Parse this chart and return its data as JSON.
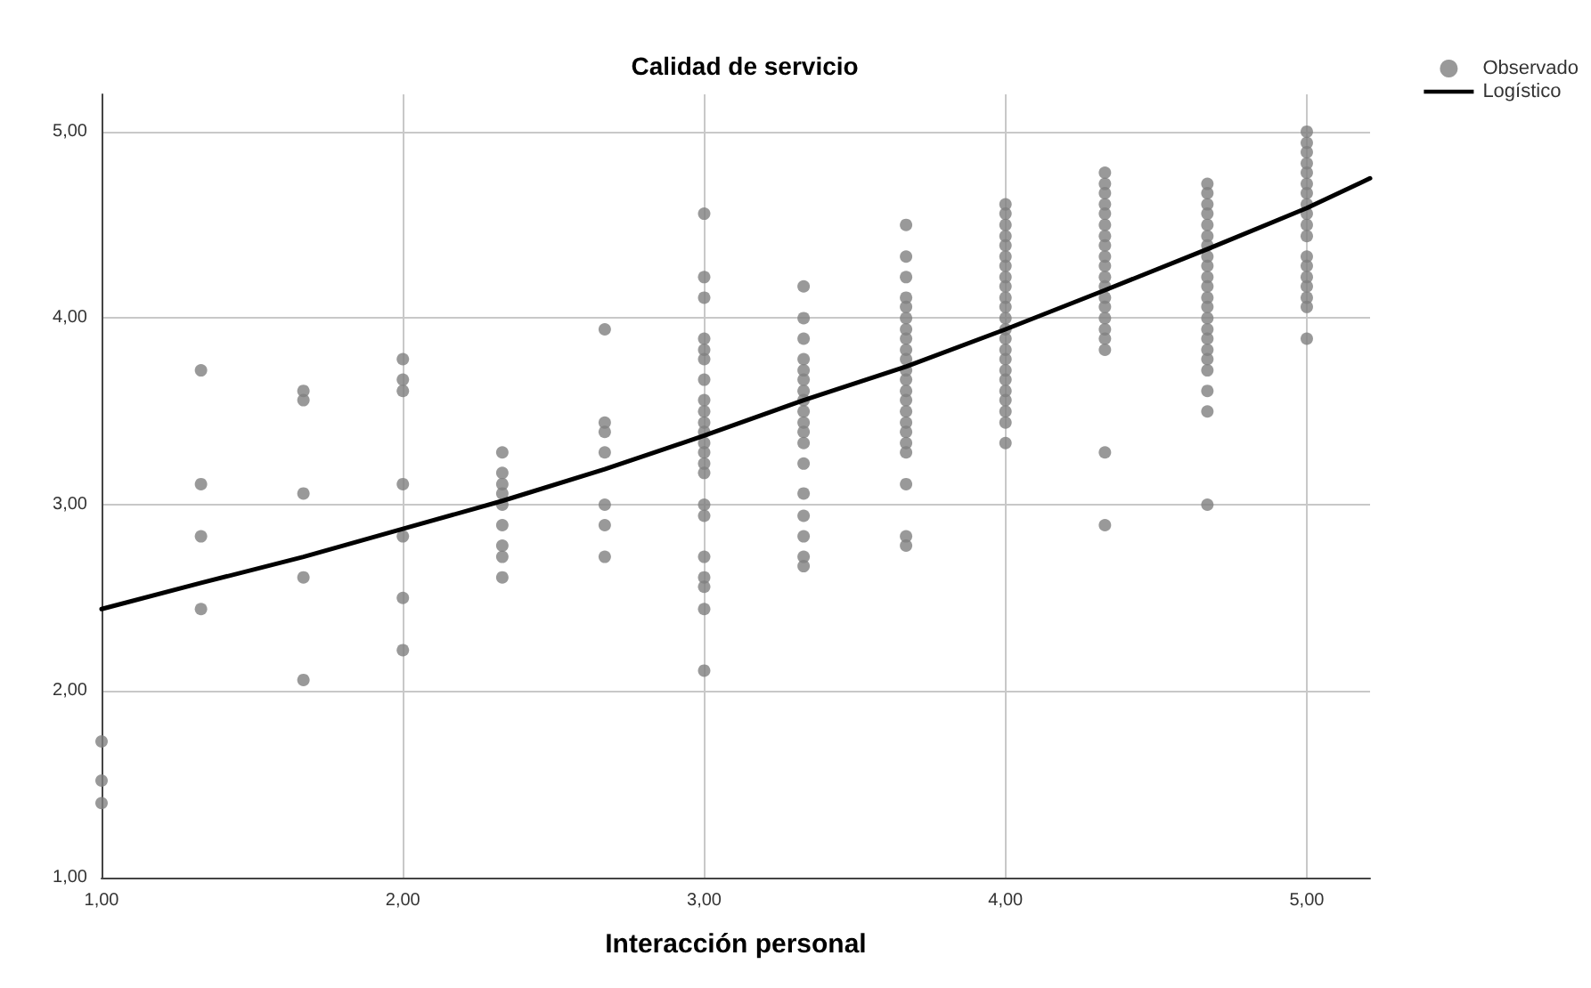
{
  "chart_data": {
    "type": "scatter",
    "title": "Calidad de servicio",
    "xlabel": "Interacción personal",
    "xlim": [
      1,
      5.21
    ],
    "ylim": [
      1,
      5.2
    ],
    "xticks": [
      {
        "value": 1,
        "label": "1,00"
      },
      {
        "value": 2,
        "label": "2,00"
      },
      {
        "value": 3,
        "label": "3,00"
      },
      {
        "value": 4,
        "label": "4,00"
      },
      {
        "value": 5,
        "label": "5,00"
      }
    ],
    "yticks": [
      {
        "value": 1,
        "label": "1,00"
      },
      {
        "value": 2,
        "label": "2,00"
      },
      {
        "value": 3,
        "label": "3,00"
      },
      {
        "value": 4,
        "label": "4,00"
      },
      {
        "value": 5,
        "label": "5,00"
      }
    ],
    "grid": true,
    "legend": "top right",
    "marker": "circle",
    "series": [
      {
        "name": "Observado",
        "color": "#808080",
        "x": [
          1,
          1,
          1,
          1.33,
          1.33,
          1.33,
          1.33,
          1.67,
          1.67,
          1.67,
          1.67,
          1.67,
          2,
          2,
          2,
          2,
          2,
          2,
          2,
          2.33,
          2.33,
          2.33,
          2.33,
          2.33,
          2.33,
          2.33,
          2.33,
          2.33,
          2.67,
          2.67,
          2.67,
          2.67,
          2.67,
          2.67,
          2.67,
          3,
          3,
          3,
          3,
          3,
          3,
          3,
          3,
          3,
          3,
          3,
          3,
          3,
          3,
          3,
          3,
          3,
          3,
          3,
          3,
          3,
          3,
          3.33,
          3.33,
          3.33,
          3.33,
          3.33,
          3.33,
          3.33,
          3.33,
          3.33,
          3.33,
          3.33,
          3.33,
          3.33,
          3.33,
          3.33,
          3.33,
          3.33,
          3.33,
          3.67,
          3.67,
          3.67,
          3.67,
          3.67,
          3.67,
          3.67,
          3.67,
          3.67,
          3.67,
          3.67,
          3.67,
          3.67,
          3.67,
          3.67,
          3.67,
          3.67,
          3.67,
          3.67,
          3.67,
          3.67,
          3.67,
          4,
          4,
          4,
          4,
          4,
          4,
          4,
          4,
          4,
          4,
          4,
          4,
          4,
          4,
          4,
          4,
          4,
          4,
          4,
          4,
          4,
          4,
          4,
          4.33,
          4.33,
          4.33,
          4.33,
          4.33,
          4.33,
          4.33,
          4.33,
          4.33,
          4.33,
          4.33,
          4.33,
          4.33,
          4.33,
          4.33,
          4.33,
          4.33,
          4.33,
          4.33,
          4.33,
          4.67,
          4.67,
          4.67,
          4.67,
          4.67,
          4.67,
          4.67,
          4.67,
          4.67,
          4.67,
          4.67,
          4.67,
          4.67,
          4.67,
          4.67,
          4.67,
          4.67,
          4.67,
          4.67,
          4.67,
          4.67,
          4.67,
          5,
          5,
          5,
          5,
          5,
          5,
          5,
          5,
          5,
          5,
          5,
          5,
          5,
          5,
          5,
          5,
          5,
          5
        ],
        "values": [
          1.73,
          1.52,
          1.4,
          3.72,
          3.11,
          2.83,
          2.44,
          3.61,
          3.56,
          3.06,
          2.61,
          2.06,
          3.78,
          3.67,
          3.61,
          3.11,
          2.83,
          2.5,
          2.22,
          3.28,
          3.17,
          3.11,
          3.06,
          3.0,
          2.89,
          2.78,
          2.72,
          2.61,
          3.94,
          3.44,
          3.39,
          3.28,
          3.0,
          2.89,
          2.72,
          4.56,
          4.22,
          4.11,
          3.89,
          3.83,
          3.78,
          3.67,
          3.56,
          3.5,
          3.44,
          3.39,
          3.33,
          3.28,
          3.22,
          3.17,
          3.0,
          2.94,
          2.72,
          2.61,
          2.56,
          2.44,
          2.11,
          4.17,
          4.0,
          3.89,
          3.78,
          3.72,
          3.67,
          3.61,
          3.56,
          3.5,
          3.44,
          3.39,
          3.33,
          3.22,
          3.06,
          2.94,
          2.83,
          2.72,
          2.67,
          4.5,
          4.33,
          4.22,
          4.11,
          4.06,
          4.0,
          3.94,
          3.89,
          3.83,
          3.78,
          3.72,
          3.67,
          3.61,
          3.56,
          3.5,
          3.44,
          3.39,
          3.33,
          3.28,
          3.11,
          2.83,
          2.78,
          4.61,
          4.56,
          4.5,
          4.44,
          4.39,
          4.33,
          4.28,
          4.22,
          4.17,
          4.11,
          4.06,
          4.0,
          3.94,
          3.89,
          3.83,
          3.78,
          3.72,
          3.67,
          3.61,
          3.56,
          3.5,
          3.44,
          3.33,
          4.78,
          4.72,
          4.67,
          4.61,
          4.56,
          4.5,
          4.44,
          4.39,
          4.33,
          4.28,
          4.22,
          4.17,
          4.11,
          4.06,
          4.0,
          3.94,
          3.89,
          3.83,
          3.28,
          2.89,
          4.72,
          4.67,
          4.61,
          4.56,
          4.5,
          4.44,
          4.39,
          4.33,
          4.28,
          4.22,
          4.17,
          4.11,
          4.06,
          4.0,
          3.94,
          3.89,
          3.83,
          3.78,
          3.72,
          3.61,
          3.5,
          3.0,
          5.0,
          4.94,
          4.89,
          4.83,
          4.78,
          4.72,
          4.67,
          4.61,
          4.56,
          4.5,
          4.44,
          4.33,
          4.28,
          4.22,
          4.17,
          4.11,
          4.06,
          3.89
        ]
      },
      {
        "name": "Logístico",
        "type": "line",
        "color": "#000000",
        "marker": "none",
        "line_style": "solid",
        "x": [
          1,
          1.33,
          1.67,
          2,
          2.33,
          2.67,
          3,
          3.33,
          3.67,
          4,
          4.33,
          4.67,
          5,
          5.21
        ],
        "values": [
          2.44,
          2.58,
          2.72,
          2.87,
          3.02,
          3.19,
          3.37,
          3.56,
          3.74,
          3.94,
          4.15,
          4.37,
          4.59,
          4.75
        ]
      }
    ]
  }
}
